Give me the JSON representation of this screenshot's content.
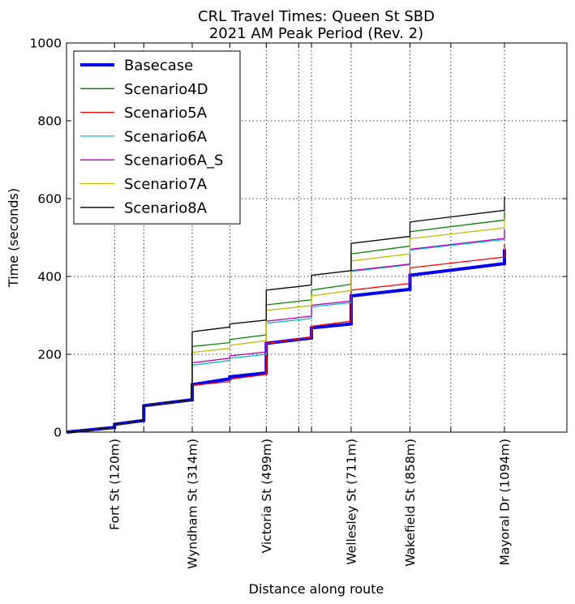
{
  "chart_data": {
    "type": "line",
    "title": "CRL Travel Times: Queen St SBD",
    "subtitle": "2021 AM Peak Period (Rev. 2)",
    "xlabel": "Distance along route",
    "ylabel": "Time (seconds)",
    "xlim": [
      0,
      1250
    ],
    "ylim": [
      0,
      1000
    ],
    "yticks": [
      0,
      200,
      400,
      600,
      800,
      1000
    ],
    "grid": true,
    "legend_position": "top-left",
    "stations": [
      {
        "name": "Fort St (120m)",
        "x": 120,
        "labeled": true
      },
      {
        "name": "",
        "x": 193,
        "labeled": false
      },
      {
        "name": "Wyndham St (314m)",
        "x": 314,
        "labeled": true
      },
      {
        "name": "",
        "x": 408,
        "labeled": false
      },
      {
        "name": "Victoria St (499m)",
        "x": 499,
        "labeled": true
      },
      {
        "name": "",
        "x": 580,
        "labeled": false
      },
      {
        "name": "",
        "x": 612,
        "labeled": false
      },
      {
        "name": "Wellesley St (711m)",
        "x": 711,
        "labeled": true
      },
      {
        "name": "Wakefield St (858m)",
        "x": 858,
        "labeled": true
      },
      {
        "name": "",
        "x": 960,
        "labeled": false
      },
      {
        "name": "Mayoral Dr (1094m)",
        "x": 1094,
        "labeled": true
      }
    ],
    "series": [
      {
        "name": "Basecase",
        "color": "#0000ee",
        "width": 4,
        "x": [
          0,
          120,
          120,
          193,
          193,
          314,
          314,
          408,
          408,
          499,
          499,
          612,
          612,
          711,
          711,
          858,
          858,
          1094,
          1094
        ],
        "values": [
          0,
          12,
          20,
          30,
          68,
          83,
          122,
          137,
          142,
          152,
          228,
          242,
          268,
          278,
          350,
          367,
          403,
          433,
          470
        ]
      },
      {
        "name": "Scenario4D",
        "color": "#008000",
        "width": 1.3,
        "x": [
          0,
          120,
          120,
          193,
          193,
          314,
          314,
          408,
          408,
          499,
          499,
          612,
          612,
          711,
          711,
          858,
          858,
          1094,
          1094
        ],
        "values": [
          0,
          12,
          20,
          30,
          68,
          83,
          220,
          230,
          238,
          250,
          327,
          340,
          365,
          380,
          458,
          478,
          515,
          545,
          565
        ]
      },
      {
        "name": "Scenario5A",
        "color": "#ff0000",
        "width": 1.3,
        "x": [
          0,
          120,
          120,
          193,
          193,
          314,
          314,
          408,
          408,
          499,
          499,
          612,
          612,
          711,
          711,
          858,
          858,
          1094,
          1094
        ],
        "values": [
          0,
          12,
          20,
          30,
          68,
          83,
          120,
          130,
          136,
          148,
          228,
          244,
          272,
          285,
          365,
          382,
          422,
          450,
          482
        ]
      },
      {
        "name": "Scenario6A",
        "color": "#00bfbf",
        "width": 1.3,
        "x": [
          0,
          120,
          120,
          193,
          193,
          314,
          314,
          408,
          408,
          499,
          499,
          612,
          612,
          711,
          711,
          858,
          858,
          1094,
          1094
        ],
        "values": [
          0,
          12,
          20,
          30,
          68,
          83,
          172,
          184,
          190,
          200,
          280,
          292,
          322,
          333,
          413,
          430,
          468,
          495,
          520
        ]
      },
      {
        "name": "Scenario6A_S",
        "color": "#bf00bf",
        "width": 1.3,
        "x": [
          0,
          120,
          120,
          193,
          193,
          314,
          314,
          408,
          408,
          499,
          499,
          612,
          612,
          711,
          711,
          858,
          858,
          1094,
          1094
        ],
        "values": [
          0,
          12,
          20,
          30,
          68,
          83,
          178,
          190,
          196,
          206,
          285,
          298,
          326,
          337,
          415,
          432,
          470,
          498,
          522
        ]
      },
      {
        "name": "Scenario7A",
        "color": "#bfbf00",
        "width": 1.3,
        "x": [
          0,
          120,
          120,
          193,
          193,
          314,
          314,
          408,
          408,
          499,
          499,
          612,
          612,
          711,
          711,
          858,
          858,
          1094,
          1094
        ],
        "values": [
          0,
          12,
          20,
          30,
          68,
          83,
          205,
          215,
          223,
          235,
          313,
          325,
          350,
          364,
          440,
          458,
          497,
          525,
          548
        ]
      },
      {
        "name": "Scenario8A",
        "color": "#000000",
        "width": 1.3,
        "x": [
          0,
          120,
          120,
          193,
          193,
          314,
          314,
          408,
          408,
          499,
          499,
          612,
          612,
          711,
          711,
          858,
          858,
          1094,
          1094
        ],
        "values": [
          0,
          12,
          20,
          30,
          68,
          83,
          258,
          270,
          278,
          288,
          365,
          378,
          403,
          415,
          485,
          503,
          540,
          570,
          605
        ]
      }
    ]
  }
}
